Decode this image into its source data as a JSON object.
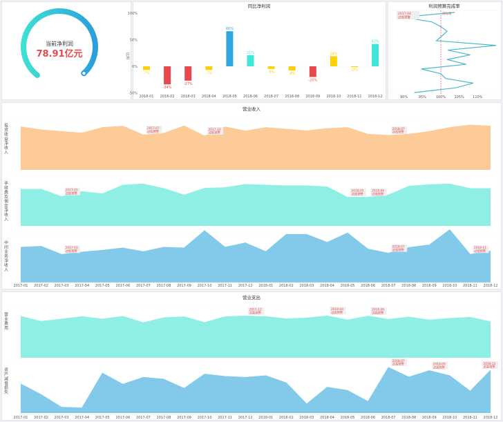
{
  "gauge": {
    "label": "当前净利润",
    "value": "78.91亿元",
    "gradient": [
      "#3ee0d2",
      "#2b9fdc"
    ]
  },
  "chart_data": [
    {
      "type": "bar",
      "title": "同比净利润",
      "ylabel": "比例",
      "ylim": [
        -50,
        100
      ],
      "yticks": [
        "100%",
        "50%",
        "0%",
        "-50%"
      ],
      "categories": [
        "2018-01",
        "2018-02",
        "2018-03",
        "2018-04",
        "2018-05",
        "2018-06",
        "2018-07",
        "2018-08",
        "2018-09",
        "2018-10",
        "2018-11",
        "2018-12"
      ],
      "values": [
        -7,
        -34,
        -27,
        -7,
        66,
        21,
        -5,
        -8,
        -20,
        19,
        -0.5,
        42
      ],
      "labels": [
        "-7%",
        "-34%",
        "-27%",
        "-7%",
        "66%",
        "21%",
        "-5%",
        "-8%",
        "-20%",
        "19%",
        "-0%",
        "42%"
      ],
      "colors": [
        "#fdd10a",
        "#e8474c",
        "#e8474c",
        "#fdd10a",
        "#2ea7e0",
        "#40e6d8",
        "#fdd10a",
        "#fdd10a",
        "#e8474c",
        "#fdd10a",
        "#fdd10a",
        "#40e6d8"
      ]
    },
    {
      "type": "line",
      "title": "利润预算完成率",
      "xticks": [
        "90%",
        "95%",
        "100%",
        "105%",
        "110%"
      ],
      "xtick_values": [
        90,
        95,
        100,
        105,
        110
      ],
      "target_value": 100,
      "target_label": "目标值",
      "values": [
        103.8,
        89.8,
        97.5,
        100,
        101.7,
        100.3,
        98.8,
        115,
        101.9,
        108,
        101.7,
        106.9,
        94.7,
        100,
        101.3,
        108.8,
        104,
        92.8
      ],
      "annotation": {
        "month": "2017-04",
        "text": "过低预警"
      },
      "color": "#4bb8c7"
    },
    {
      "type": "area",
      "title": "营业收入",
      "x": [
        "2017-01",
        "2017-02",
        "2017-03",
        "2017-04",
        "2017-05",
        "2017-06",
        "2017-07",
        "2017-08",
        "2017-09",
        "2017-10",
        "2017-11",
        "2017-12",
        "2018-01",
        "2018-02",
        "2018-03",
        "2018-04",
        "2018-05",
        "2018-06",
        "2018-07",
        "2018-08",
        "2018-09",
        "2018-10",
        "2018-11",
        "2018-12"
      ],
      "series": [
        {
          "name": "投资收益净收入",
          "color": "#fccb98",
          "values": [
            187,
            174,
            167,
            160,
            184,
            190,
            152,
            159,
            191,
            147,
            187,
            169,
            184,
            177,
            170,
            180,
            184,
            155,
            150,
            155,
            167,
            184,
            195,
            190
          ],
          "annotations": [
            {
              "month": "2017-07",
              "text": "过低预警"
            },
            {
              "month": "2017-10",
              "text": "过低预警"
            },
            {
              "month": "2018-07",
              "text": "过低预警"
            }
          ]
        },
        {
          "name": "手续费及佣金净收入",
          "color": "#90efe4",
          "values": [
            159,
            159,
            127,
            149,
            139,
            177,
            182,
            162,
            134,
            163,
            166,
            180,
            177,
            174,
            174,
            169,
            124,
            124,
            134,
            172,
            179,
            182,
            162,
            162
          ],
          "annotations": [
            {
              "month": "2017-03",
              "text": "过低预警"
            },
            {
              "month": "2018-05",
              "text": "过低预警"
            },
            {
              "month": "2018-06",
              "text": "过低预警"
            }
          ]
        },
        {
          "name": "中间业务净收入",
          "color": "#83c9ea",
          "values": [
            153,
            157,
            122,
            132,
            140,
            150,
            134,
            153,
            150,
            225,
            153,
            172,
            134,
            209,
            209,
            174,
            215,
            145,
            127,
            152,
            163,
            229,
            122,
            137
          ],
          "annotations": [
            {
              "month": "2017-03",
              "text": "过低预警"
            },
            {
              "month": "2018-07",
              "text": "过低预警"
            },
            {
              "month": "2018-11",
              "text": "过低预警"
            }
          ]
        }
      ]
    },
    {
      "type": "area",
      "title": "营业支出",
      "x": [
        "2017-01",
        "2017-02",
        "2017-03",
        "2017-04",
        "2017-05",
        "2017-06",
        "2017-07",
        "2017-08",
        "2017-09",
        "2017-10",
        "2017-11",
        "2017-12",
        "2018-01",
        "2018-02",
        "2018-03",
        "2018-04",
        "2018-05",
        "2018-06",
        "2018-07",
        "2018-08",
        "2018-09",
        "2018-10",
        "2018-11",
        "2018-12"
      ],
      "series": [
        {
          "name": "营业费用",
          "color": "#90efe4",
          "values": [
            180,
            158,
            168,
            179,
            168,
            180,
            152,
            174,
            178,
            153,
            178,
            181,
            179,
            169,
            173,
            182,
            164,
            181,
            167,
            177,
            164,
            171,
            176,
            156
          ],
          "annotations": [
            {
              "month": "2017-12",
              "text": "过高预警"
            },
            {
              "month": "2018-04",
              "text": "过高预警"
            },
            {
              "month": "2018-06",
              "text": "过高预警"
            }
          ]
        },
        {
          "name": "资产减值损失",
          "color": "#83c9ea",
          "values": [
            126,
            80,
            25,
            22,
            173,
            125,
            155,
            147,
            107,
            169,
            159,
            155,
            162,
            131,
            39,
            112,
            98,
            50,
            198,
            156,
            184,
            162,
            95,
            186
          ],
          "annotations": [
            {
              "month": "2018-07",
              "text": "过高预警"
            },
            {
              "month": "2018-09",
              "text": "过高预警"
            },
            {
              "month": "2018-12",
              "text": "过高预警"
            }
          ]
        }
      ]
    }
  ]
}
